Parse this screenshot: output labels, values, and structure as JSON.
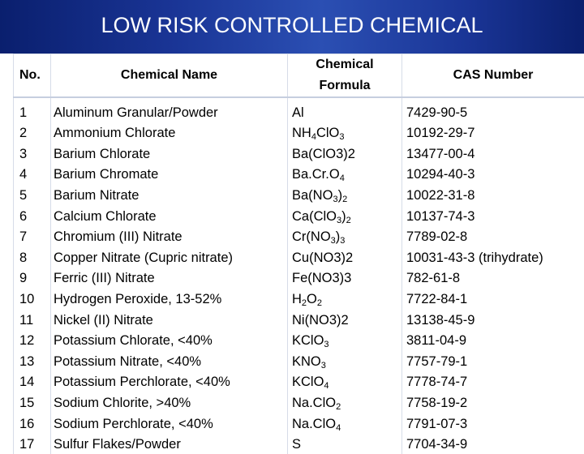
{
  "title": "LOW RISK CONTROLLED CHEMICAL",
  "table": {
    "headers": {
      "no": "No.",
      "name": "Chemical Name",
      "formula_line1": "Chemical",
      "formula_line2": "Formula",
      "cas": "CAS Number"
    },
    "rows": [
      {
        "no": "1",
        "name": "Aluminum Granular/Powder",
        "formula": [
          {
            "t": "Al",
            "sub": false
          }
        ],
        "cas": "7429-90-5"
      },
      {
        "no": "2",
        "name": "Ammonium Chlorate",
        "formula": [
          {
            "t": "NH",
            "sub": false
          },
          {
            "t": "4",
            "sub": true
          },
          {
            "t": "ClO",
            "sub": false
          },
          {
            "t": "3",
            "sub": true
          }
        ],
        "cas": "10192-29-7"
      },
      {
        "no": "3",
        "name": "Barium Chlorate",
        "formula": [
          {
            "t": "Ba(ClO3)2",
            "sub": false
          }
        ],
        "cas": "13477-00-4"
      },
      {
        "no": "4",
        "name": "Barium Chromate",
        "formula": [
          {
            "t": "Ba.Cr.O",
            "sub": false
          },
          {
            "t": "4",
            "sub": true
          }
        ],
        "cas": "10294-40-3"
      },
      {
        "no": "5",
        "name": "Barium Nitrate",
        "formula": [
          {
            "t": "Ba(NO",
            "sub": false
          },
          {
            "t": "3",
            "sub": true
          },
          {
            "t": ")",
            "sub": false
          },
          {
            "t": "2",
            "sub": true
          }
        ],
        "cas": "10022-31-8"
      },
      {
        "no": "6",
        "name": "Calcium Chlorate",
        "formula": [
          {
            "t": "Ca(ClO",
            "sub": false
          },
          {
            "t": "3",
            "sub": true
          },
          {
            "t": ")",
            "sub": false
          },
          {
            "t": "2",
            "sub": true
          }
        ],
        "cas": "10137-74-3"
      },
      {
        "no": "7",
        "name": "Chromium (III) Nitrate",
        "formula": [
          {
            "t": "Cr(NO",
            "sub": false
          },
          {
            "t": "3",
            "sub": true
          },
          {
            "t": ")",
            "sub": false
          },
          {
            "t": "3",
            "sub": true
          }
        ],
        "cas": "7789-02-8"
      },
      {
        "no": "8",
        "name": "Copper Nitrate (Cupric nitrate)",
        "formula": [
          {
            "t": "Cu(NO3)2",
            "sub": false
          }
        ],
        "cas": "10031-43-3 (trihydrate)"
      },
      {
        "no": "9",
        "name": "Ferric (III) Nitrate",
        "formula": [
          {
            "t": "Fe(NO3)3",
            "sub": false
          }
        ],
        "cas": "782-61-8"
      },
      {
        "no": "10",
        "name": "Hydrogen Peroxide, 13-52%",
        "formula": [
          {
            "t": "H",
            "sub": false
          },
          {
            "t": "2",
            "sub": true
          },
          {
            "t": "O",
            "sub": false
          },
          {
            "t": "2",
            "sub": true
          }
        ],
        "cas": "7722-84-1"
      },
      {
        "no": "11",
        "name": "Nickel (II) Nitrate",
        "formula": [
          {
            "t": "Ni(NO3)2",
            "sub": false
          }
        ],
        "cas": "13138-45-9"
      },
      {
        "no": "12",
        "name": "Potassium Chlorate, <40%",
        "formula": [
          {
            "t": "KClO",
            "sub": false
          },
          {
            "t": "3",
            "sub": true
          }
        ],
        "cas": "3811-04-9"
      },
      {
        "no": "13",
        "name": "Potassium Nitrate, <40%",
        "formula": [
          {
            "t": "KNO",
            "sub": false
          },
          {
            "t": "3",
            "sub": true
          }
        ],
        "cas": "7757-79-1"
      },
      {
        "no": "14",
        "name": "Potassium Perchlorate, <40%",
        "formula": [
          {
            "t": "KClO",
            "sub": false
          },
          {
            "t": "4",
            "sub": true
          }
        ],
        "cas": "7778-74-7"
      },
      {
        "no": "15",
        "name": "Sodium Chlorite, >40%",
        "formula": [
          {
            "t": "Na.ClO",
            "sub": false
          },
          {
            "t": "2",
            "sub": true
          }
        ],
        "cas": "7758-19-2"
      },
      {
        "no": "16",
        "name": "Sodium Perchlorate, <40%",
        "formula": [
          {
            "t": "Na.ClO",
            "sub": false
          },
          {
            "t": "4",
            "sub": true
          }
        ],
        "cas": "7791-07-3"
      },
      {
        "no": "17",
        "name": "Sulfur Flakes/Powder",
        "formula": [
          {
            "t": "S",
            "sub": false
          }
        ],
        "cas": "7704-34-9"
      }
    ]
  }
}
